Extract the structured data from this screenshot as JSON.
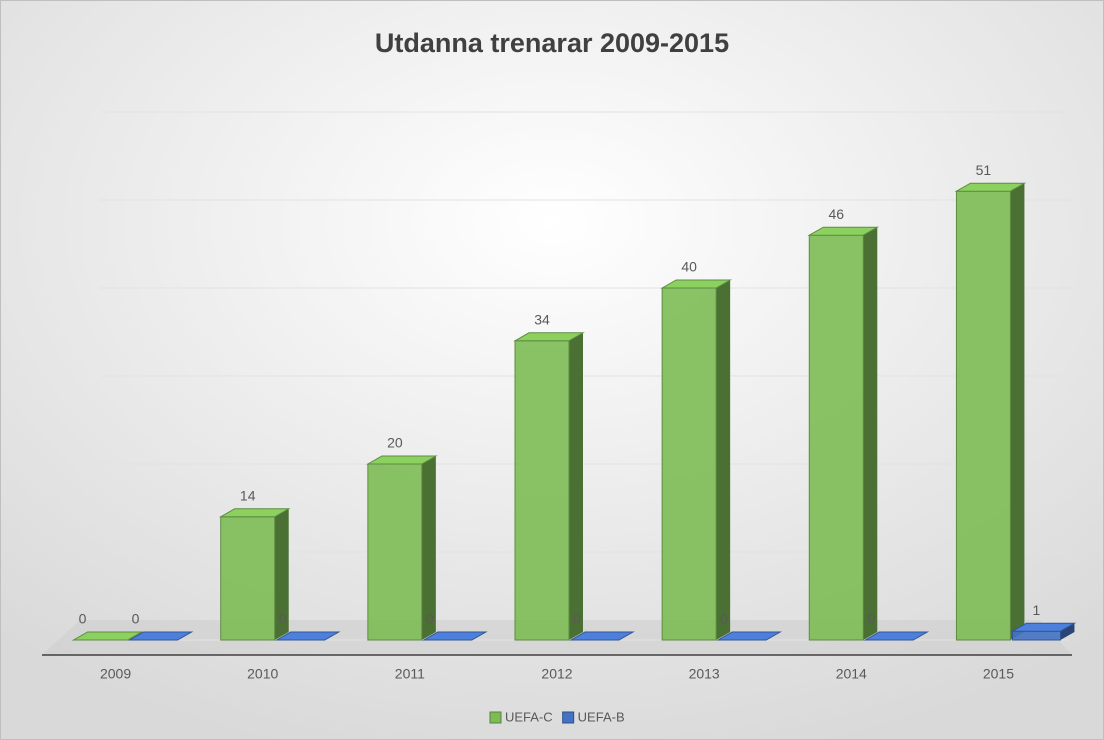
{
  "chart_data": {
    "type": "bar3d",
    "title": "Utdanna trenarar 2009-2015",
    "categories": [
      "2009",
      "2010",
      "2011",
      "2012",
      "2013",
      "2014",
      "2015"
    ],
    "series": [
      {
        "name": "UEFA-C",
        "color": "#7dbb55",
        "values": [
          0,
          14,
          20,
          34,
          40,
          46,
          51
        ]
      },
      {
        "name": "UEFA-B",
        "color": "#4472c4",
        "values": [
          0,
          0,
          0,
          0,
          0,
          0,
          1
        ]
      }
    ],
    "ylim": [
      0,
      60
    ],
    "yticks": [
      0,
      10,
      20,
      30,
      40,
      50,
      60
    ],
    "grid": true,
    "legend": "bottom"
  }
}
